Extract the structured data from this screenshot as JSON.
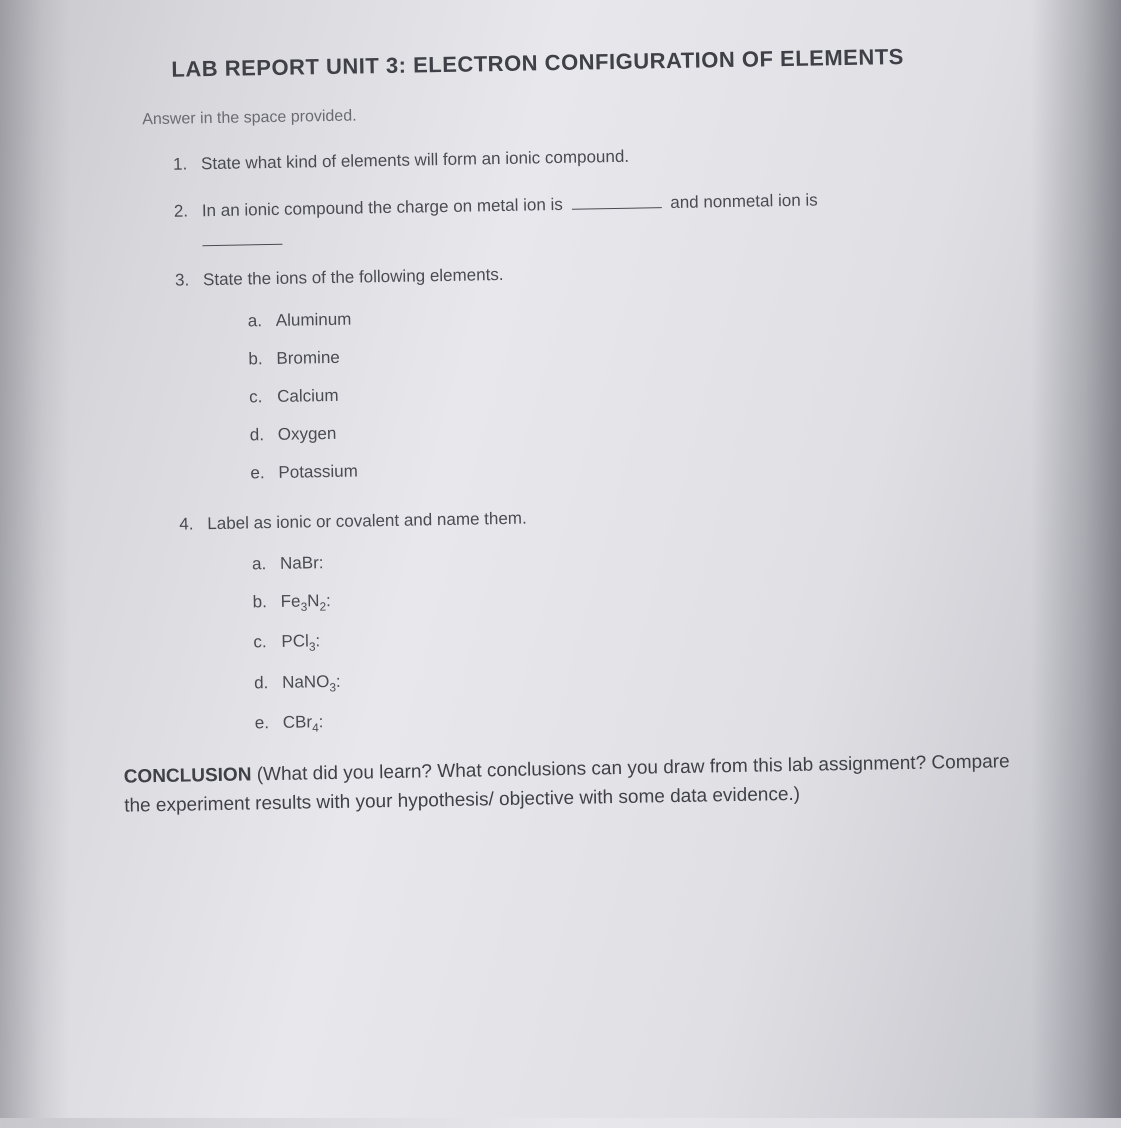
{
  "title": "LAB REPORT UNIT 3: ELECTRON CONFIGURATION OF ELEMENTS",
  "instruction": "Answer in the space provided.",
  "questions": {
    "q1": {
      "num": "1.",
      "text": "State what kind of elements will form an ionic compound."
    },
    "q2": {
      "num": "2.",
      "text_before": "In an ionic compound the charge on metal ion is",
      "text_after": "and nonmetal ion is"
    },
    "q3": {
      "num": "3.",
      "text": "State the ions of the following elements.",
      "items": {
        "a": {
          "letter": "a.",
          "label": "Aluminum"
        },
        "b": {
          "letter": "b.",
          "label": "Bromine"
        },
        "c": {
          "letter": "c.",
          "label": "Calcium"
        },
        "d": {
          "letter": "d.",
          "label": "Oxygen"
        },
        "e": {
          "letter": "e.",
          "label": "Potassium"
        }
      }
    },
    "q4": {
      "num": "4.",
      "text": "Label as ionic or covalent and name them.",
      "items": {
        "a": {
          "letter": "a.",
          "label": "NaBr:"
        },
        "b": {
          "letter": "b.",
          "label_html": "Fe<sub>3</sub>N<sub>2</sub>:"
        },
        "c": {
          "letter": "c.",
          "label_html": "PCl<sub>3</sub>:"
        },
        "d": {
          "letter": "d.",
          "label_html": "NaNO<sub>3</sub>:"
        },
        "e": {
          "letter": "e.",
          "label_html": "CBr<sub>4</sub>:"
        }
      }
    }
  },
  "conclusion": {
    "label": "CONCLUSION",
    "text": " (What did you learn? What conclusions can you draw from this lab assignment? Compare the experiment results with your hypothesis/ objective with some data evidence.)"
  }
}
